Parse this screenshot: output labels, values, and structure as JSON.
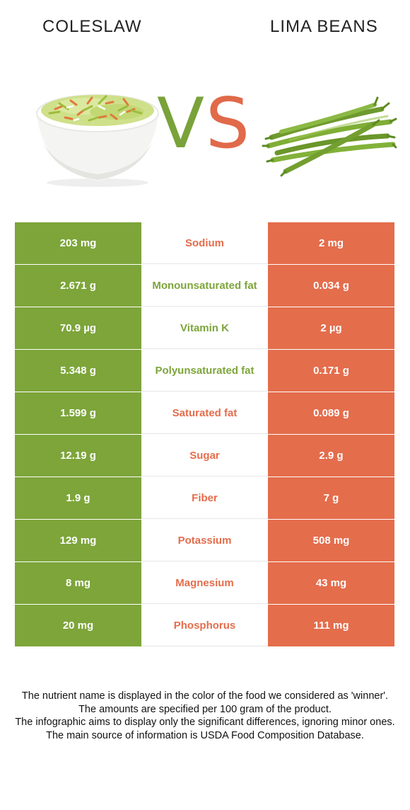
{
  "header": {
    "left_food": "COLESLAW",
    "right_food": "LIMA BEANS",
    "vs_v": "V",
    "vs_s": "S"
  },
  "colors": {
    "left": "#7da53a",
    "right": "#e46d4c"
  },
  "rows": [
    {
      "left": "203 mg",
      "name": "Sodium",
      "right": "2 mg",
      "winner": "right"
    },
    {
      "left": "2.671 g",
      "name": "Monounsaturated fat",
      "right": "0.034 g",
      "winner": "left"
    },
    {
      "left": "70.9 µg",
      "name": "Vitamin K",
      "right": "2 µg",
      "winner": "left"
    },
    {
      "left": "5.348 g",
      "name": "Polyunsaturated fat",
      "right": "0.171 g",
      "winner": "left"
    },
    {
      "left": "1.599 g",
      "name": "Saturated fat",
      "right": "0.089 g",
      "winner": "right"
    },
    {
      "left": "12.19 g",
      "name": "Sugar",
      "right": "2.9 g",
      "winner": "right"
    },
    {
      "left": "1.9 g",
      "name": "Fiber",
      "right": "7 g",
      "winner": "right"
    },
    {
      "left": "129 mg",
      "name": "Potassium",
      "right": "508 mg",
      "winner": "right"
    },
    {
      "left": "8 mg",
      "name": "Magnesium",
      "right": "43 mg",
      "winner": "right"
    },
    {
      "left": "20 mg",
      "name": "Phosphorus",
      "right": "111 mg",
      "winner": "right"
    }
  ],
  "footer": {
    "line1": "The nutrient name is displayed in the color of the food we considered as 'winner'.",
    "line2": "The amounts are specified per 100 gram of the product.",
    "line3": "The infographic aims to display only the significant differences, ignoring minor ones.",
    "line4": "The main source of information is USDA Food Composition Database."
  }
}
